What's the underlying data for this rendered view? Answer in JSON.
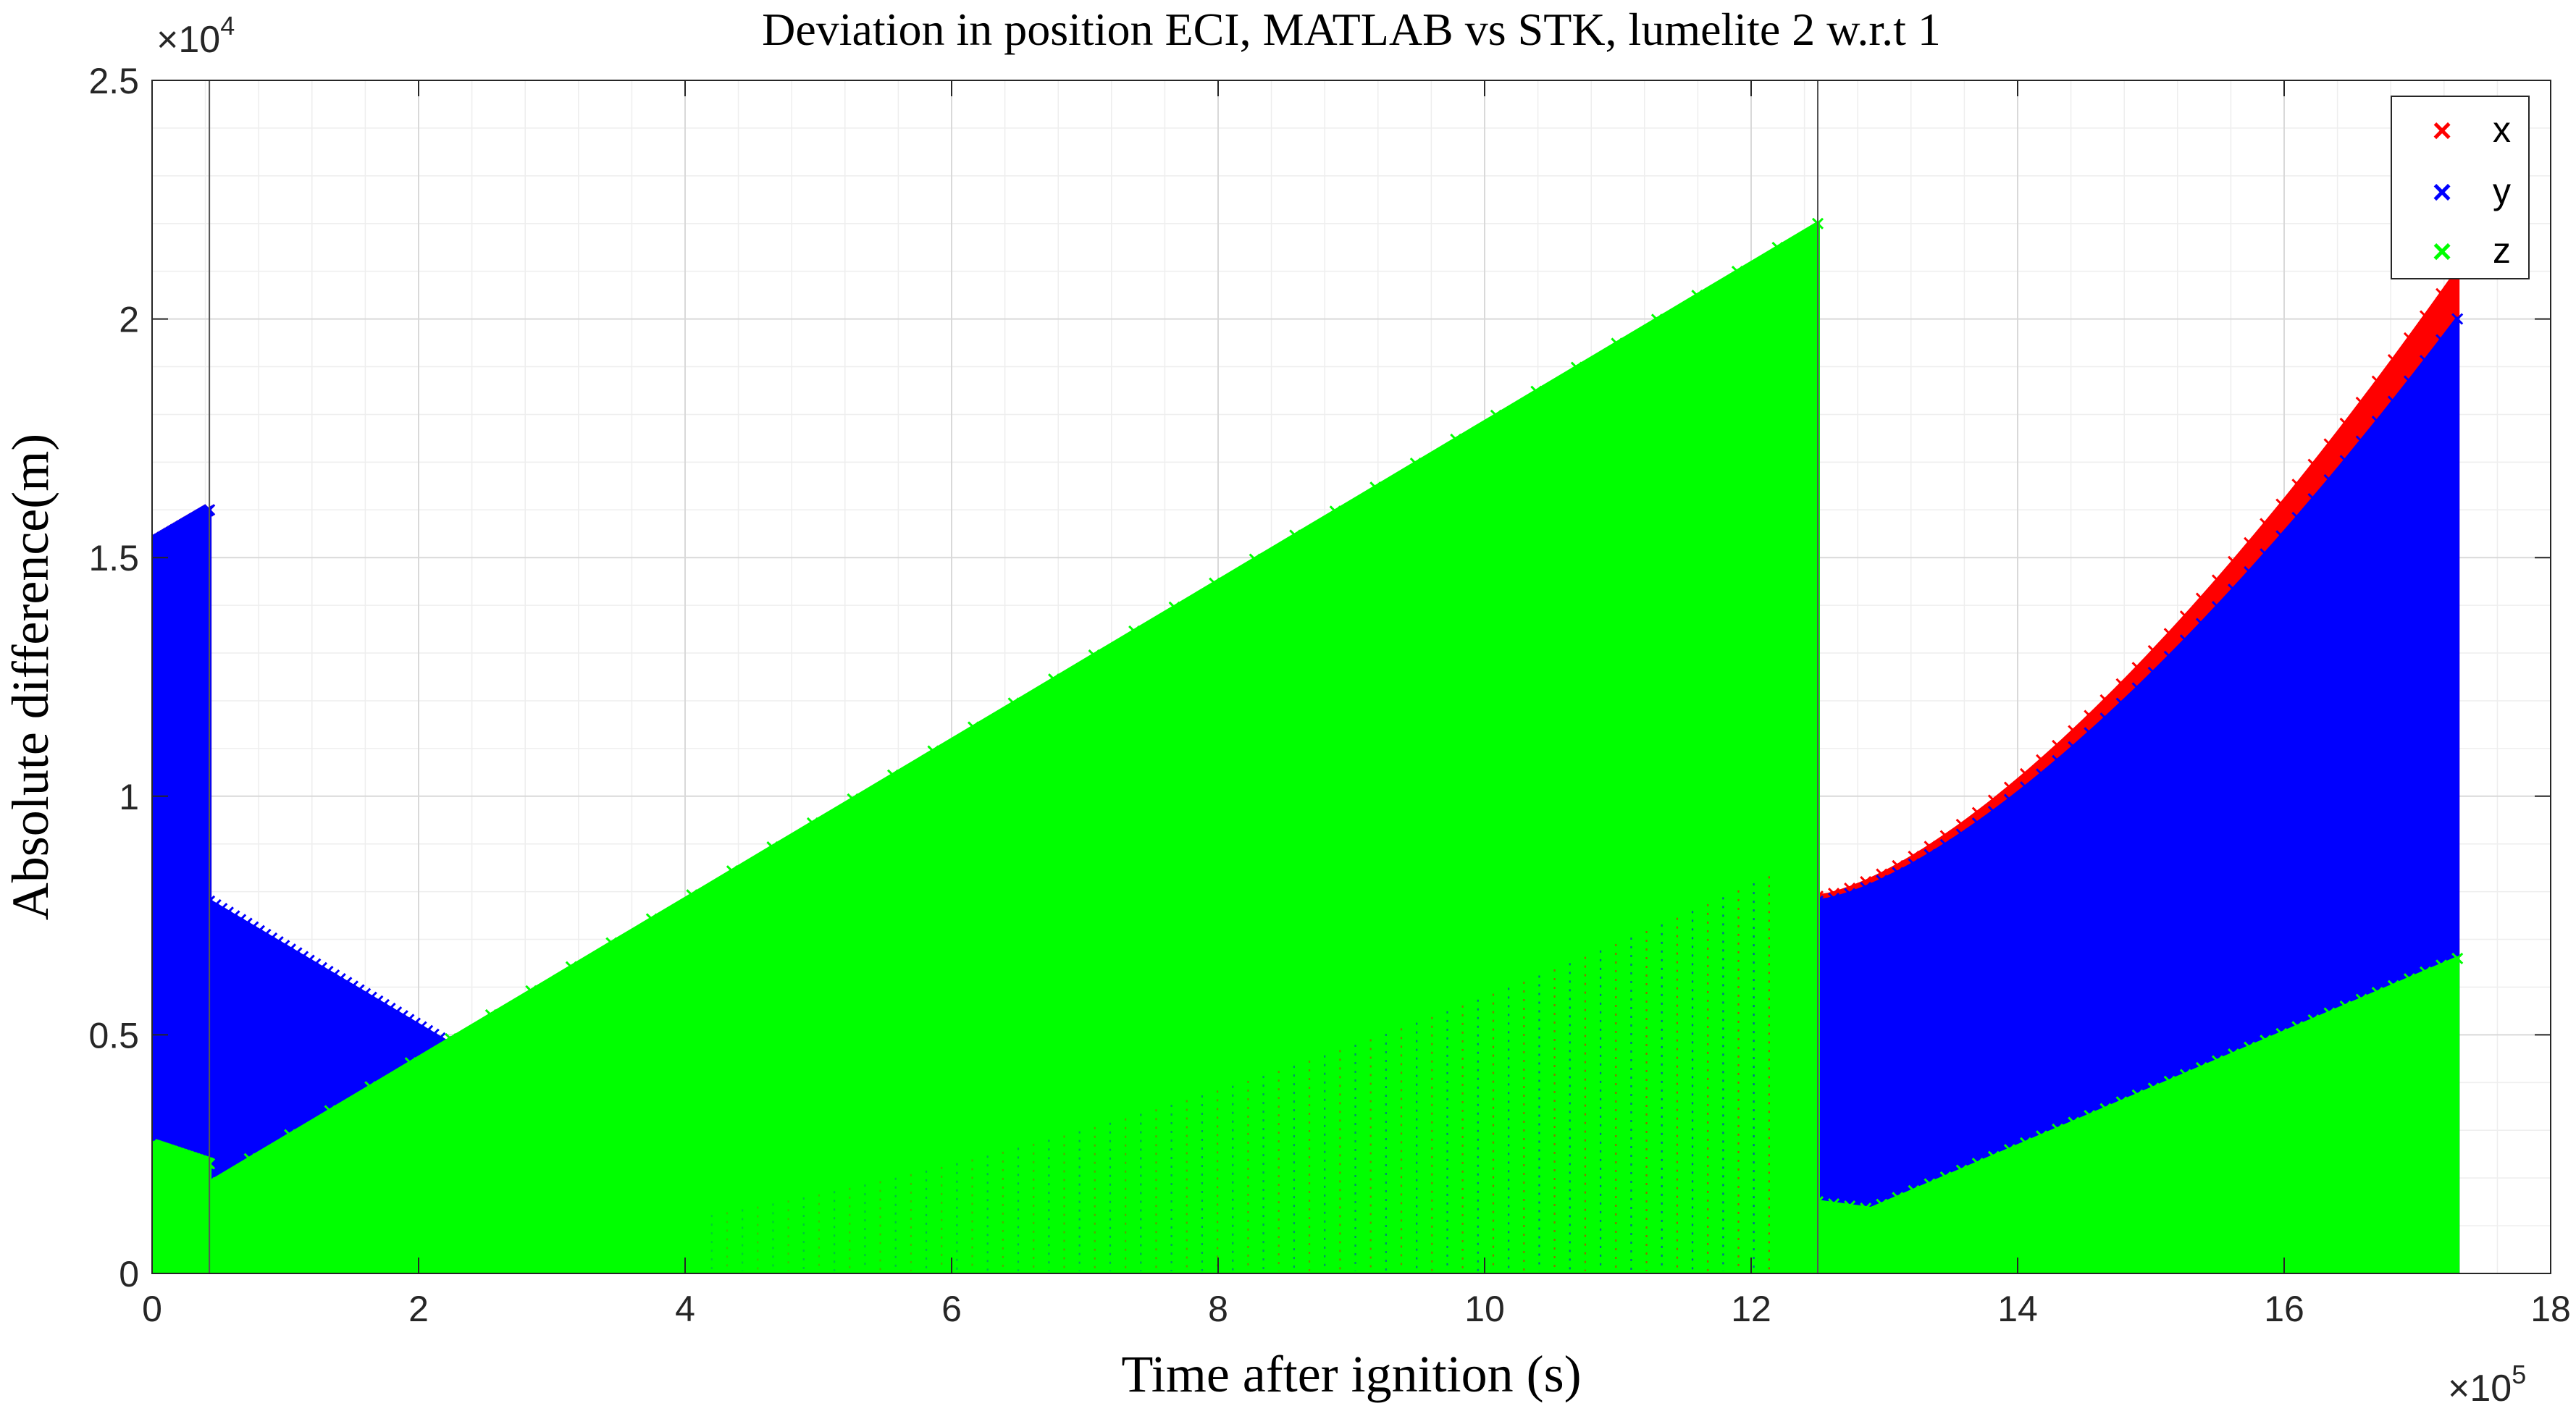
{
  "chart_data": {
    "type": "scatter",
    "title": "Deviation in position ECI, MATLAB vs STK, lumelite 2 w.r.t 1",
    "xlabel": "Time after ignition (s)",
    "ylabel": "Absolute difference(m)",
    "x_exponent_label": "×10",
    "x_exponent_power": "5",
    "y_exponent_label": "×10",
    "y_exponent_power": "4",
    "xlim": [
      0,
      18
    ],
    "ylim": [
      0,
      2.5
    ],
    "x_ticks": [
      "0",
      "2",
      "4",
      "6",
      "8",
      "10",
      "12",
      "14",
      "16",
      "18"
    ],
    "y_ticks": [
      "0",
      "0.5",
      "1",
      "1.5",
      "2",
      "2.5"
    ],
    "grid": true,
    "minor_grid": true,
    "legend_position": "top-right",
    "marker": "×",
    "vertical_lines_x": [
      0.43,
      12.5
    ],
    "series": [
      {
        "name": "x",
        "color": "#ff0000",
        "segments": [
          {
            "x_start": 0.0,
            "x_end": 0.43,
            "upper_start": 1.53,
            "upper_end": 1.6,
            "lower_start": 0.0,
            "lower_end": 0.0
          },
          {
            "x_start": 12.5,
            "x_end": 17.3,
            "upper_start": 0.79,
            "upper_end": 2.1,
            "upper_shape": "convex",
            "lower_start": 0.0,
            "lower_end": 0.0
          }
        ]
      },
      {
        "name": "y",
        "color": "#0000ff",
        "segments": [
          {
            "x_start": 0.0,
            "x_end": 0.43,
            "upper_start": 1.53,
            "upper_end": 1.6,
            "lower_start": 0.28,
            "lower_end": 0.22
          },
          {
            "x_start": 0.43,
            "x_end": 2.3,
            "upper_start": 0.78,
            "upper_end": 0.47,
            "lower_start": 0.17,
            "lower_end": 0.47
          },
          {
            "x_start": 12.5,
            "x_end": 17.3,
            "upper_start": 0.78,
            "upper_end": 2.0,
            "upper_shape": "convex",
            "lower_start": 0.0,
            "lower_end": 0.0
          }
        ]
      },
      {
        "name": "z",
        "color": "#00ff00",
        "segments": [
          {
            "x_start": 0.0,
            "x_end": 0.43,
            "upper_start": 0.27,
            "upper_end": 0.23,
            "lower_start": 0.0,
            "lower_end": 0.0
          },
          {
            "x_start": 0.43,
            "x_end": 12.5,
            "upper_start": 0.19,
            "upper_end": 2.2,
            "lower_start": 0.0,
            "lower_end": 0.0
          },
          {
            "x_start": 12.5,
            "x_end": 17.3,
            "upper_start": 0.15,
            "upper_end": 0.66,
            "upper_dip_x": 12.9,
            "upper_dip_y": 0.135,
            "lower_start": 0.0,
            "lower_end": 0.0
          }
        ]
      }
    ]
  }
}
